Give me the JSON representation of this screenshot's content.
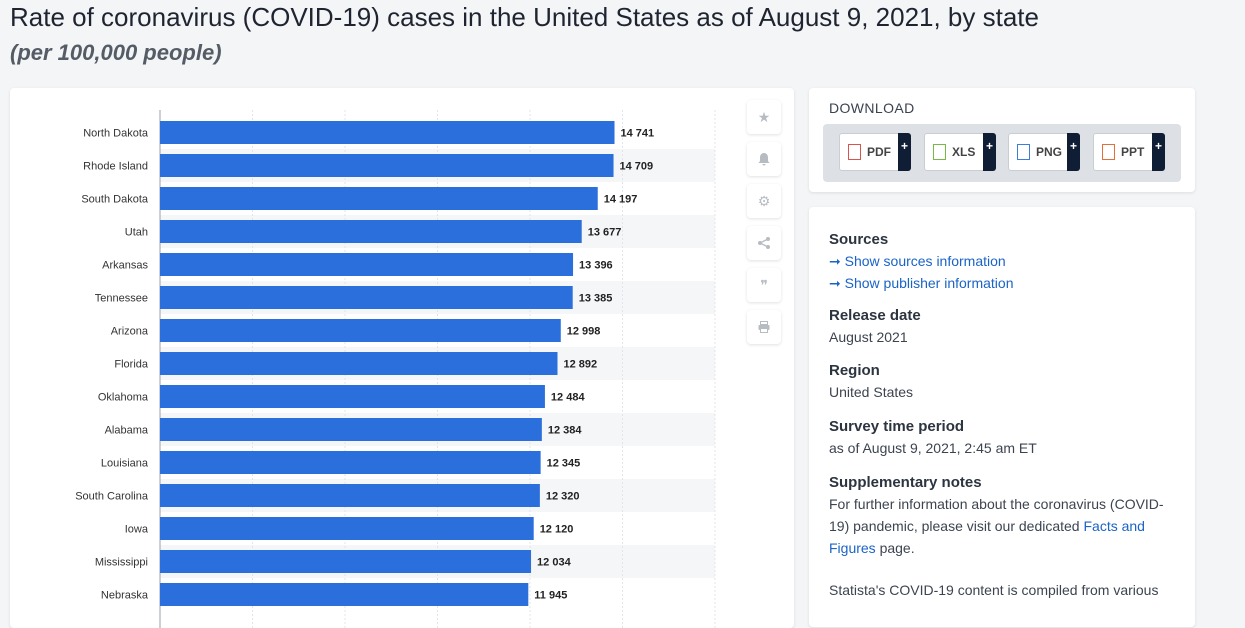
{
  "header": {
    "title": "Rate of coronavirus (COVID-19) cases in the United States as of August 9, 2021, by state",
    "subtitle": "(per 100,000 people)"
  },
  "colors": {
    "bar": "#2a6fdb",
    "accent": "#1a63c7",
    "plus_bg": "#0f1e35"
  },
  "toolbar": {
    "icons": [
      "star-icon",
      "bell-icon",
      "gear-icon",
      "share-icon",
      "quote-icon",
      "print-icon"
    ]
  },
  "chart_data": {
    "type": "bar",
    "orientation": "horizontal",
    "categories": [
      "North Dakota",
      "Rhode Island",
      "South Dakota",
      "Utah",
      "Arkansas",
      "Tennessee",
      "Arizona",
      "Florida",
      "Oklahoma",
      "Alabama",
      "Louisiana",
      "South Carolina",
      "Iowa",
      "Mississippi",
      "Nebraska"
    ],
    "values": [
      14741,
      14709,
      14197,
      13677,
      13396,
      13385,
      12998,
      12892,
      12484,
      12384,
      12345,
      12320,
      12120,
      12034,
      11945
    ],
    "value_labels": [
      "14 741",
      "14 709",
      "14 197",
      "13 677",
      "13 396",
      "13 385",
      "12 998",
      "12 892",
      "12 484",
      "12 384",
      "12 345",
      "12 320",
      "12 120",
      "12 034",
      "11 945"
    ],
    "xlim": [
      0,
      18000
    ],
    "grid": true
  },
  "download": {
    "title": "DOWNLOAD",
    "buttons": [
      {
        "label": "PDF",
        "plus": "+",
        "color": "#d9534f"
      },
      {
        "label": "XLS",
        "plus": "+",
        "color": "#7ab648"
      },
      {
        "label": "PNG",
        "plus": "+",
        "color": "#3b7dd8"
      },
      {
        "label": "PPT",
        "plus": "+",
        "color": "#e2703a"
      }
    ]
  },
  "info": {
    "sources_heading": "Sources",
    "sources_link": "Show sources information",
    "publisher_link": "Show publisher information",
    "arrow": "➞",
    "release_heading": "Release date",
    "release_value": "August 2021",
    "region_heading": "Region",
    "region_value": "United States",
    "survey_heading": "Survey time period",
    "survey_value": "as of August 9, 2021, 2:45 am ET",
    "supp_heading": "Supplementary notes",
    "supp_text1": "For further information about the coronavirus (COVID-19) pandemic, please visit our dedicated",
    "supp_link": "Facts and Figures",
    "supp_text2": " page.",
    "supp_text3": "Statista's COVID-19 content is compiled from various"
  }
}
